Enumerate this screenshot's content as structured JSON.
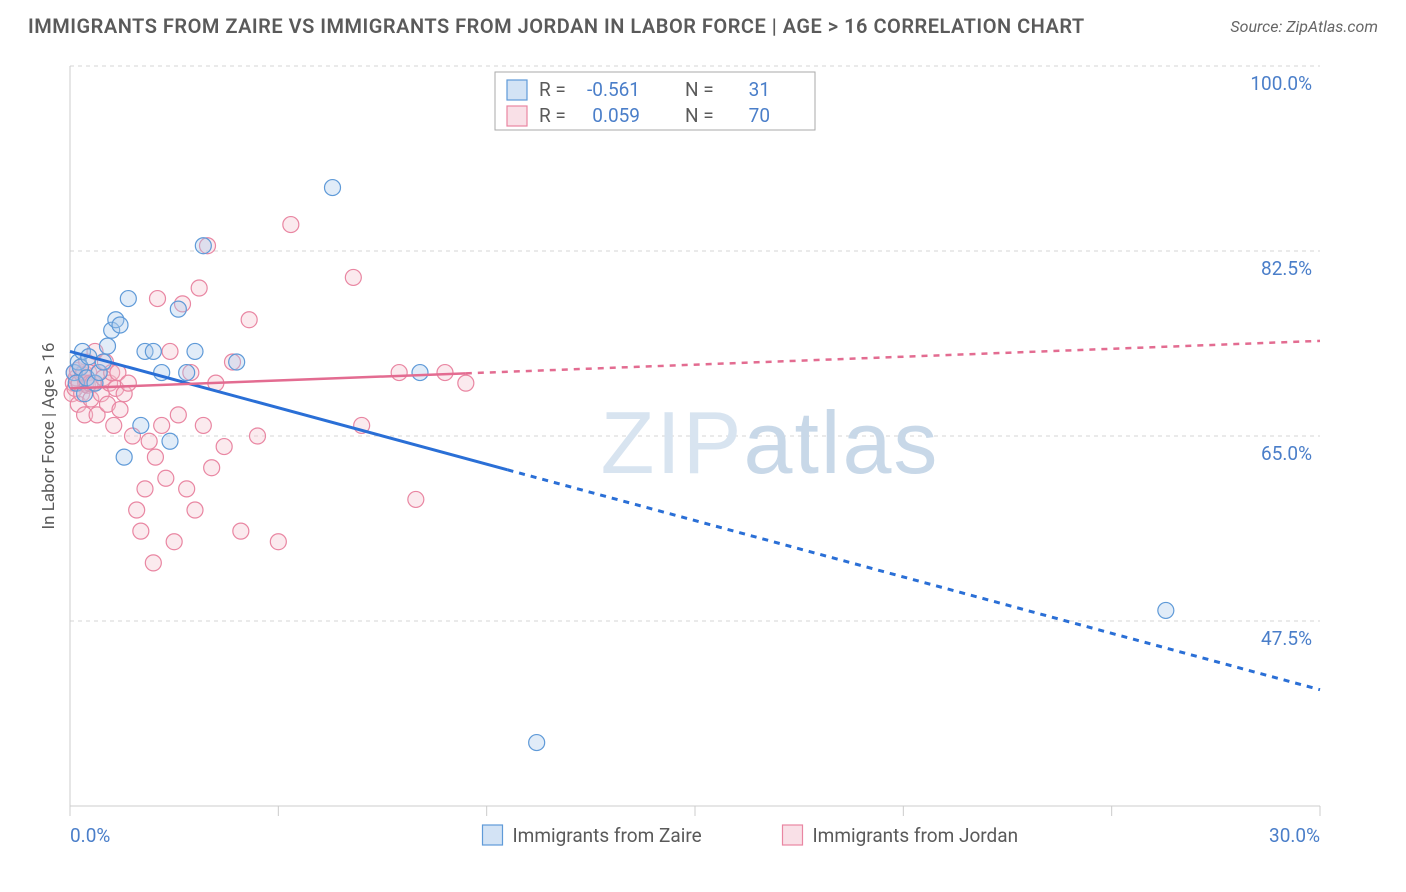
{
  "title": "IMMIGRANTS FROM ZAIRE VS IMMIGRANTS FROM JORDAN IN LABOR FORCE | AGE > 16 CORRELATION CHART",
  "source": "Source: ZipAtlas.com",
  "watermark": "ZIPatlas",
  "ylabel": "In Labor Force | Age > 16",
  "chart": {
    "type": "scatter",
    "background_color": "#ffffff",
    "grid_color": "#d6d6d6",
    "axis_color": "#cccccc",
    "xlim": [
      0,
      30
    ],
    "ylim": [
      30,
      100
    ],
    "x_ticks": [
      0,
      5,
      10,
      15,
      20,
      25,
      30
    ],
    "x_tick_labels": [
      "0.0%",
      "",
      "",
      "",
      "",
      "",
      "30.0%"
    ],
    "y_ticks": [
      47.5,
      65.0,
      82.5,
      100.0
    ],
    "y_tick_labels": [
      "47.5%",
      "65.0%",
      "82.5%",
      "100.0%"
    ],
    "marker_radius": 8,
    "marker_fill_opacity": 0.35,
    "marker_stroke_width": 1.2,
    "series": [
      {
        "name": "Immigrants from Zaire",
        "color_fill": "#a8c8ec",
        "color_stroke": "#5f9ad8",
        "regression": {
          "x1": 0,
          "y1": 73,
          "x2": 30,
          "y2": 41,
          "solid_until_x": 10.5,
          "stroke": "#2a6fd6",
          "stroke_width": 3,
          "dash": "6 6"
        },
        "legend_top": {
          "R": "-0.561",
          "N": "31"
        },
        "points": [
          [
            0.1,
            71
          ],
          [
            0.15,
            70
          ],
          [
            0.2,
            72
          ],
          [
            0.25,
            71.5
          ],
          [
            0.3,
            73
          ],
          [
            0.35,
            69
          ],
          [
            0.4,
            70.5
          ],
          [
            0.45,
            72.5
          ],
          [
            0.6,
            70
          ],
          [
            0.7,
            71
          ],
          [
            0.8,
            72
          ],
          [
            0.9,
            73.5
          ],
          [
            1.0,
            75
          ],
          [
            1.1,
            76
          ],
          [
            1.2,
            75.5
          ],
          [
            1.3,
            63
          ],
          [
            1.4,
            78
          ],
          [
            1.7,
            66
          ],
          [
            1.8,
            73
          ],
          [
            2.0,
            73
          ],
          [
            2.2,
            71
          ],
          [
            2.4,
            64.5
          ],
          [
            2.6,
            77
          ],
          [
            2.8,
            71
          ],
          [
            3.0,
            73
          ],
          [
            3.2,
            83
          ],
          [
            4.0,
            72
          ],
          [
            6.3,
            88.5
          ],
          [
            8.4,
            71
          ],
          [
            11.2,
            36
          ],
          [
            26.3,
            48.5
          ]
        ]
      },
      {
        "name": "Immigrants from Jordan",
        "color_fill": "#f4c2cf",
        "color_stroke": "#e986a2",
        "regression": {
          "x1": 0,
          "y1": 69.5,
          "x2": 30,
          "y2": 74,
          "solid_until_x": 9.5,
          "stroke": "#e36c91",
          "stroke_width": 2.5,
          "dash": "6 6"
        },
        "legend_top": {
          "R": "0.059",
          "N": "70"
        },
        "points": [
          [
            0.05,
            69
          ],
          [
            0.08,
            70
          ],
          [
            0.1,
            71
          ],
          [
            0.12,
            69.5
          ],
          [
            0.15,
            70.5
          ],
          [
            0.18,
            71.2
          ],
          [
            0.2,
            68
          ],
          [
            0.22,
            70
          ],
          [
            0.25,
            71.5
          ],
          [
            0.28,
            69
          ],
          [
            0.3,
            70.8
          ],
          [
            0.33,
            71
          ],
          [
            0.35,
            67
          ],
          [
            0.38,
            70
          ],
          [
            0.4,
            72
          ],
          [
            0.42,
            69.8
          ],
          [
            0.45,
            71
          ],
          [
            0.48,
            70
          ],
          [
            0.5,
            68.5
          ],
          [
            0.55,
            70
          ],
          [
            0.6,
            73
          ],
          [
            0.65,
            67
          ],
          [
            0.7,
            71
          ],
          [
            0.75,
            69
          ],
          [
            0.8,
            70.5
          ],
          [
            0.85,
            72
          ],
          [
            0.9,
            68
          ],
          [
            0.95,
            70
          ],
          [
            1.0,
            71
          ],
          [
            1.05,
            66
          ],
          [
            1.1,
            69.5
          ],
          [
            1.15,
            71
          ],
          [
            1.2,
            67.5
          ],
          [
            1.3,
            69
          ],
          [
            1.4,
            70
          ],
          [
            1.5,
            65
          ],
          [
            1.6,
            58
          ],
          [
            1.7,
            56
          ],
          [
            1.8,
            60
          ],
          [
            1.9,
            64.5
          ],
          [
            2.0,
            53
          ],
          [
            2.05,
            63
          ],
          [
            2.1,
            78
          ],
          [
            2.2,
            66
          ],
          [
            2.3,
            61
          ],
          [
            2.4,
            73
          ],
          [
            2.5,
            55
          ],
          [
            2.6,
            67
          ],
          [
            2.7,
            77.5
          ],
          [
            2.8,
            60
          ],
          [
            2.9,
            71
          ],
          [
            3.0,
            58
          ],
          [
            3.1,
            79
          ],
          [
            3.2,
            66
          ],
          [
            3.3,
            83
          ],
          [
            3.4,
            62
          ],
          [
            3.5,
            70
          ],
          [
            3.7,
            64
          ],
          [
            3.9,
            72
          ],
          [
            4.1,
            56
          ],
          [
            4.3,
            76
          ],
          [
            4.5,
            65
          ],
          [
            5.0,
            55
          ],
          [
            5.3,
            85
          ],
          [
            6.8,
            80
          ],
          [
            7.0,
            66
          ],
          [
            7.9,
            71
          ],
          [
            8.3,
            59
          ],
          [
            9.0,
            71
          ],
          [
            9.5,
            70
          ]
        ]
      }
    ],
    "legend_box": {
      "border_color": "#aaaaaa",
      "text_color": "#5a5a5a",
      "value_color": "#4a7ec9"
    }
  }
}
